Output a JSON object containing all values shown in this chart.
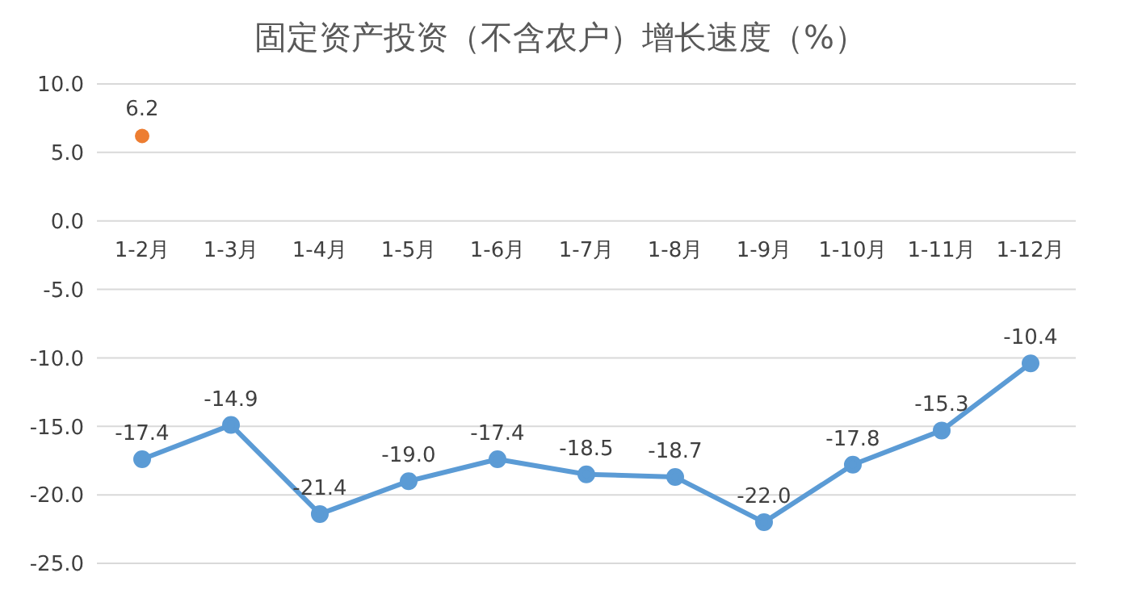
{
  "chart_data": {
    "type": "line",
    "title": "固定资产投资（不含农户）增长速度（%）",
    "categories": [
      "1-2月",
      "1-3月",
      "1-4月",
      "1-5月",
      "1-6月",
      "1-7月",
      "1-8月",
      "1-9月",
      "1-10月",
      "1-11月",
      "1-12月"
    ],
    "series": [
      {
        "type": "scatter",
        "color": "#ed7d31",
        "values": [
          6.2,
          null,
          null,
          null,
          null,
          null,
          null,
          null,
          null,
          null,
          null
        ],
        "value_labels": [
          "6.2",
          null,
          null,
          null,
          null,
          null,
          null,
          null,
          null,
          null,
          null
        ]
      },
      {
        "color": "#5b9bd5",
        "values": [
          -17.4,
          -14.9,
          -21.4,
          -19.0,
          -17.4,
          -18.5,
          -18.7,
          -22.0,
          -17.8,
          -15.3,
          -10.4
        ],
        "value_labels": [
          "-17.4",
          "-14.9",
          "-21.4",
          "-19.0",
          "-17.4",
          "-18.5",
          "-18.7",
          "-22.0",
          "-17.8",
          "-15.3",
          "-10.4"
        ]
      }
    ],
    "ylim": [
      -25,
      10
    ],
    "yticks": [
      {
        "value": 10,
        "label": "10.0"
      },
      {
        "value": 5,
        "label": "5.0"
      },
      {
        "value": 0,
        "label": "0.0"
      },
      {
        "value": -5,
        "label": "-5.0"
      },
      {
        "value": -10,
        "label": "-10.0"
      },
      {
        "value": -15,
        "label": "-15.0"
      },
      {
        "value": -20,
        "label": "-20.0"
      },
      {
        "value": -25,
        "label": "-25.0"
      }
    ],
    "grid": "y",
    "marker": "circle",
    "line_style": "solid",
    "legend": false
  }
}
